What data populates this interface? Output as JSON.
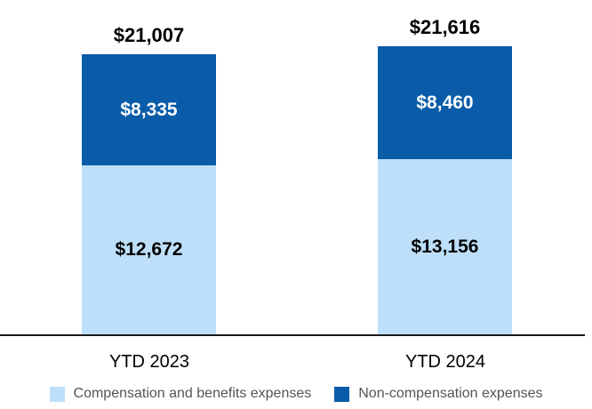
{
  "chart_data": {
    "type": "bar",
    "stacked": true,
    "title": "",
    "xlabel": "",
    "ylabel": "",
    "grid": false,
    "legend_position": "bottom",
    "background": "#FFFFFF",
    "axis_line_color": "#1A1A1A",
    "categories": [
      "YTD 2023",
      "YTD 2024"
    ],
    "series": [
      {
        "name": "Compensation and benefits expenses",
        "color": "#BDDFF9",
        "values": [
          12672,
          13156
        ],
        "value_labels": [
          "$12,672",
          "$13,156"
        ],
        "label_color": "#000000"
      },
      {
        "name": "Non-compensation expenses",
        "color": "#0A5CA8",
        "values": [
          8335,
          8460
        ],
        "value_labels": [
          "$8,335",
          "$8,460"
        ],
        "label_color": "#FFFFFF"
      }
    ],
    "totals": [
      21007,
      21616
    ],
    "total_labels": [
      "$21,007",
      "$21,616"
    ]
  }
}
